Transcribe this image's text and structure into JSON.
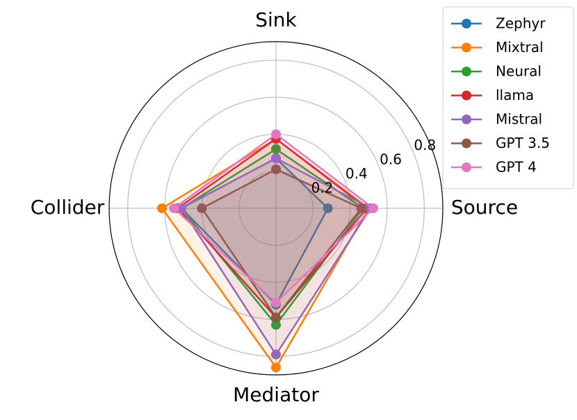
{
  "chart_data": {
    "type": "radar",
    "categories": [
      "Source",
      "Sink",
      "Collider",
      "Mediator"
    ],
    "rlim": [
      0,
      0.9
    ],
    "rticks": [
      0.2,
      0.4,
      0.6,
      0.8
    ],
    "grid": true,
    "legend": "upper right",
    "series": [
      {
        "name": "Zephyr",
        "color": "#1f77b4",
        "values": [
          0.28,
          0.27,
          0.51,
          0.52
        ]
      },
      {
        "name": "Mixtral",
        "color": "#ff7f0e",
        "values": [
          0.5,
          0.375,
          0.615,
          0.86
        ]
      },
      {
        "name": "Neural",
        "color": "#2ca02c",
        "values": [
          0.47,
          0.32,
          0.51,
          0.63
        ]
      },
      {
        "name": "llama",
        "color": "#d62728",
        "values": [
          0.49,
          0.375,
          0.53,
          0.59
        ]
      },
      {
        "name": "Mistral",
        "color": "#9467bd",
        "values": [
          0.51,
          0.27,
          0.51,
          0.79
        ]
      },
      {
        "name": "GPT 3.5",
        "color": "#8c564b",
        "values": [
          0.46,
          0.21,
          0.4,
          0.59
        ]
      },
      {
        "name": "GPT 4",
        "color": "#e377c2",
        "values": [
          0.525,
          0.4,
          0.55,
          0.51
        ]
      }
    ]
  }
}
